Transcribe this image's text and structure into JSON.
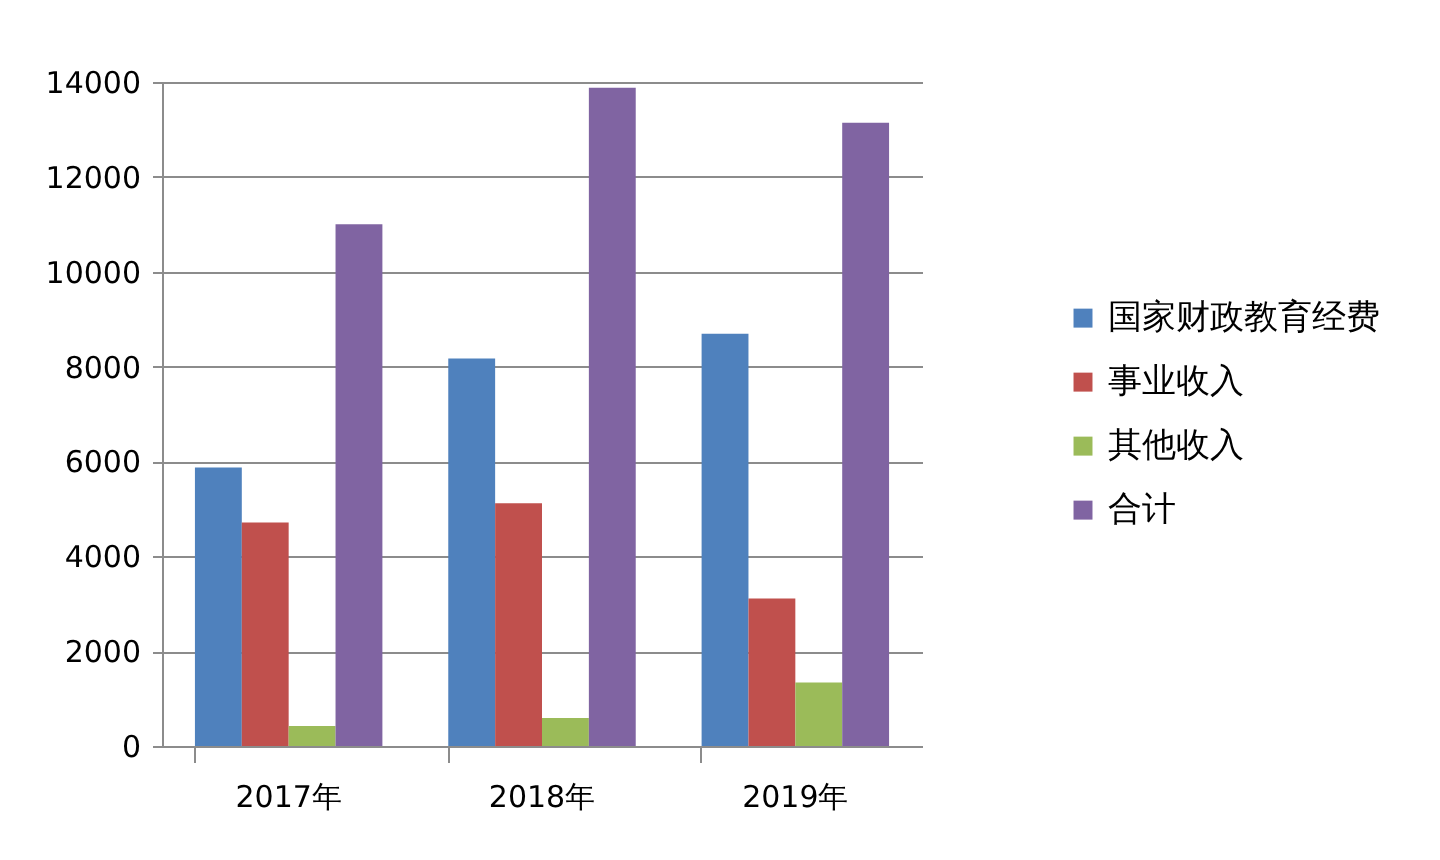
{
  "chart_data": {
    "type": "bar",
    "categories": [
      "2017年",
      "2018年",
      "2019年"
    ],
    "series": [
      {
        "name": "国家财政教育经费",
        "color": "#4f81bd",
        "values": [
          5870,
          8170,
          8690
        ]
      },
      {
        "name": "事业收入",
        "color": "#c0504d",
        "values": [
          4710,
          5120,
          3110
        ]
      },
      {
        "name": "其他收入",
        "color": "#9bbb59",
        "values": [
          420,
          590,
          1340
        ]
      },
      {
        "name": "合计",
        "color": "#8064a2",
        "values": [
          11000,
          13880,
          13140
        ]
      }
    ],
    "ylim": [
      0,
      14000
    ],
    "yticks": [
      0,
      2000,
      4000,
      6000,
      8000,
      10000,
      12000,
      14000
    ],
    "grid": "y",
    "legend": "right"
  }
}
